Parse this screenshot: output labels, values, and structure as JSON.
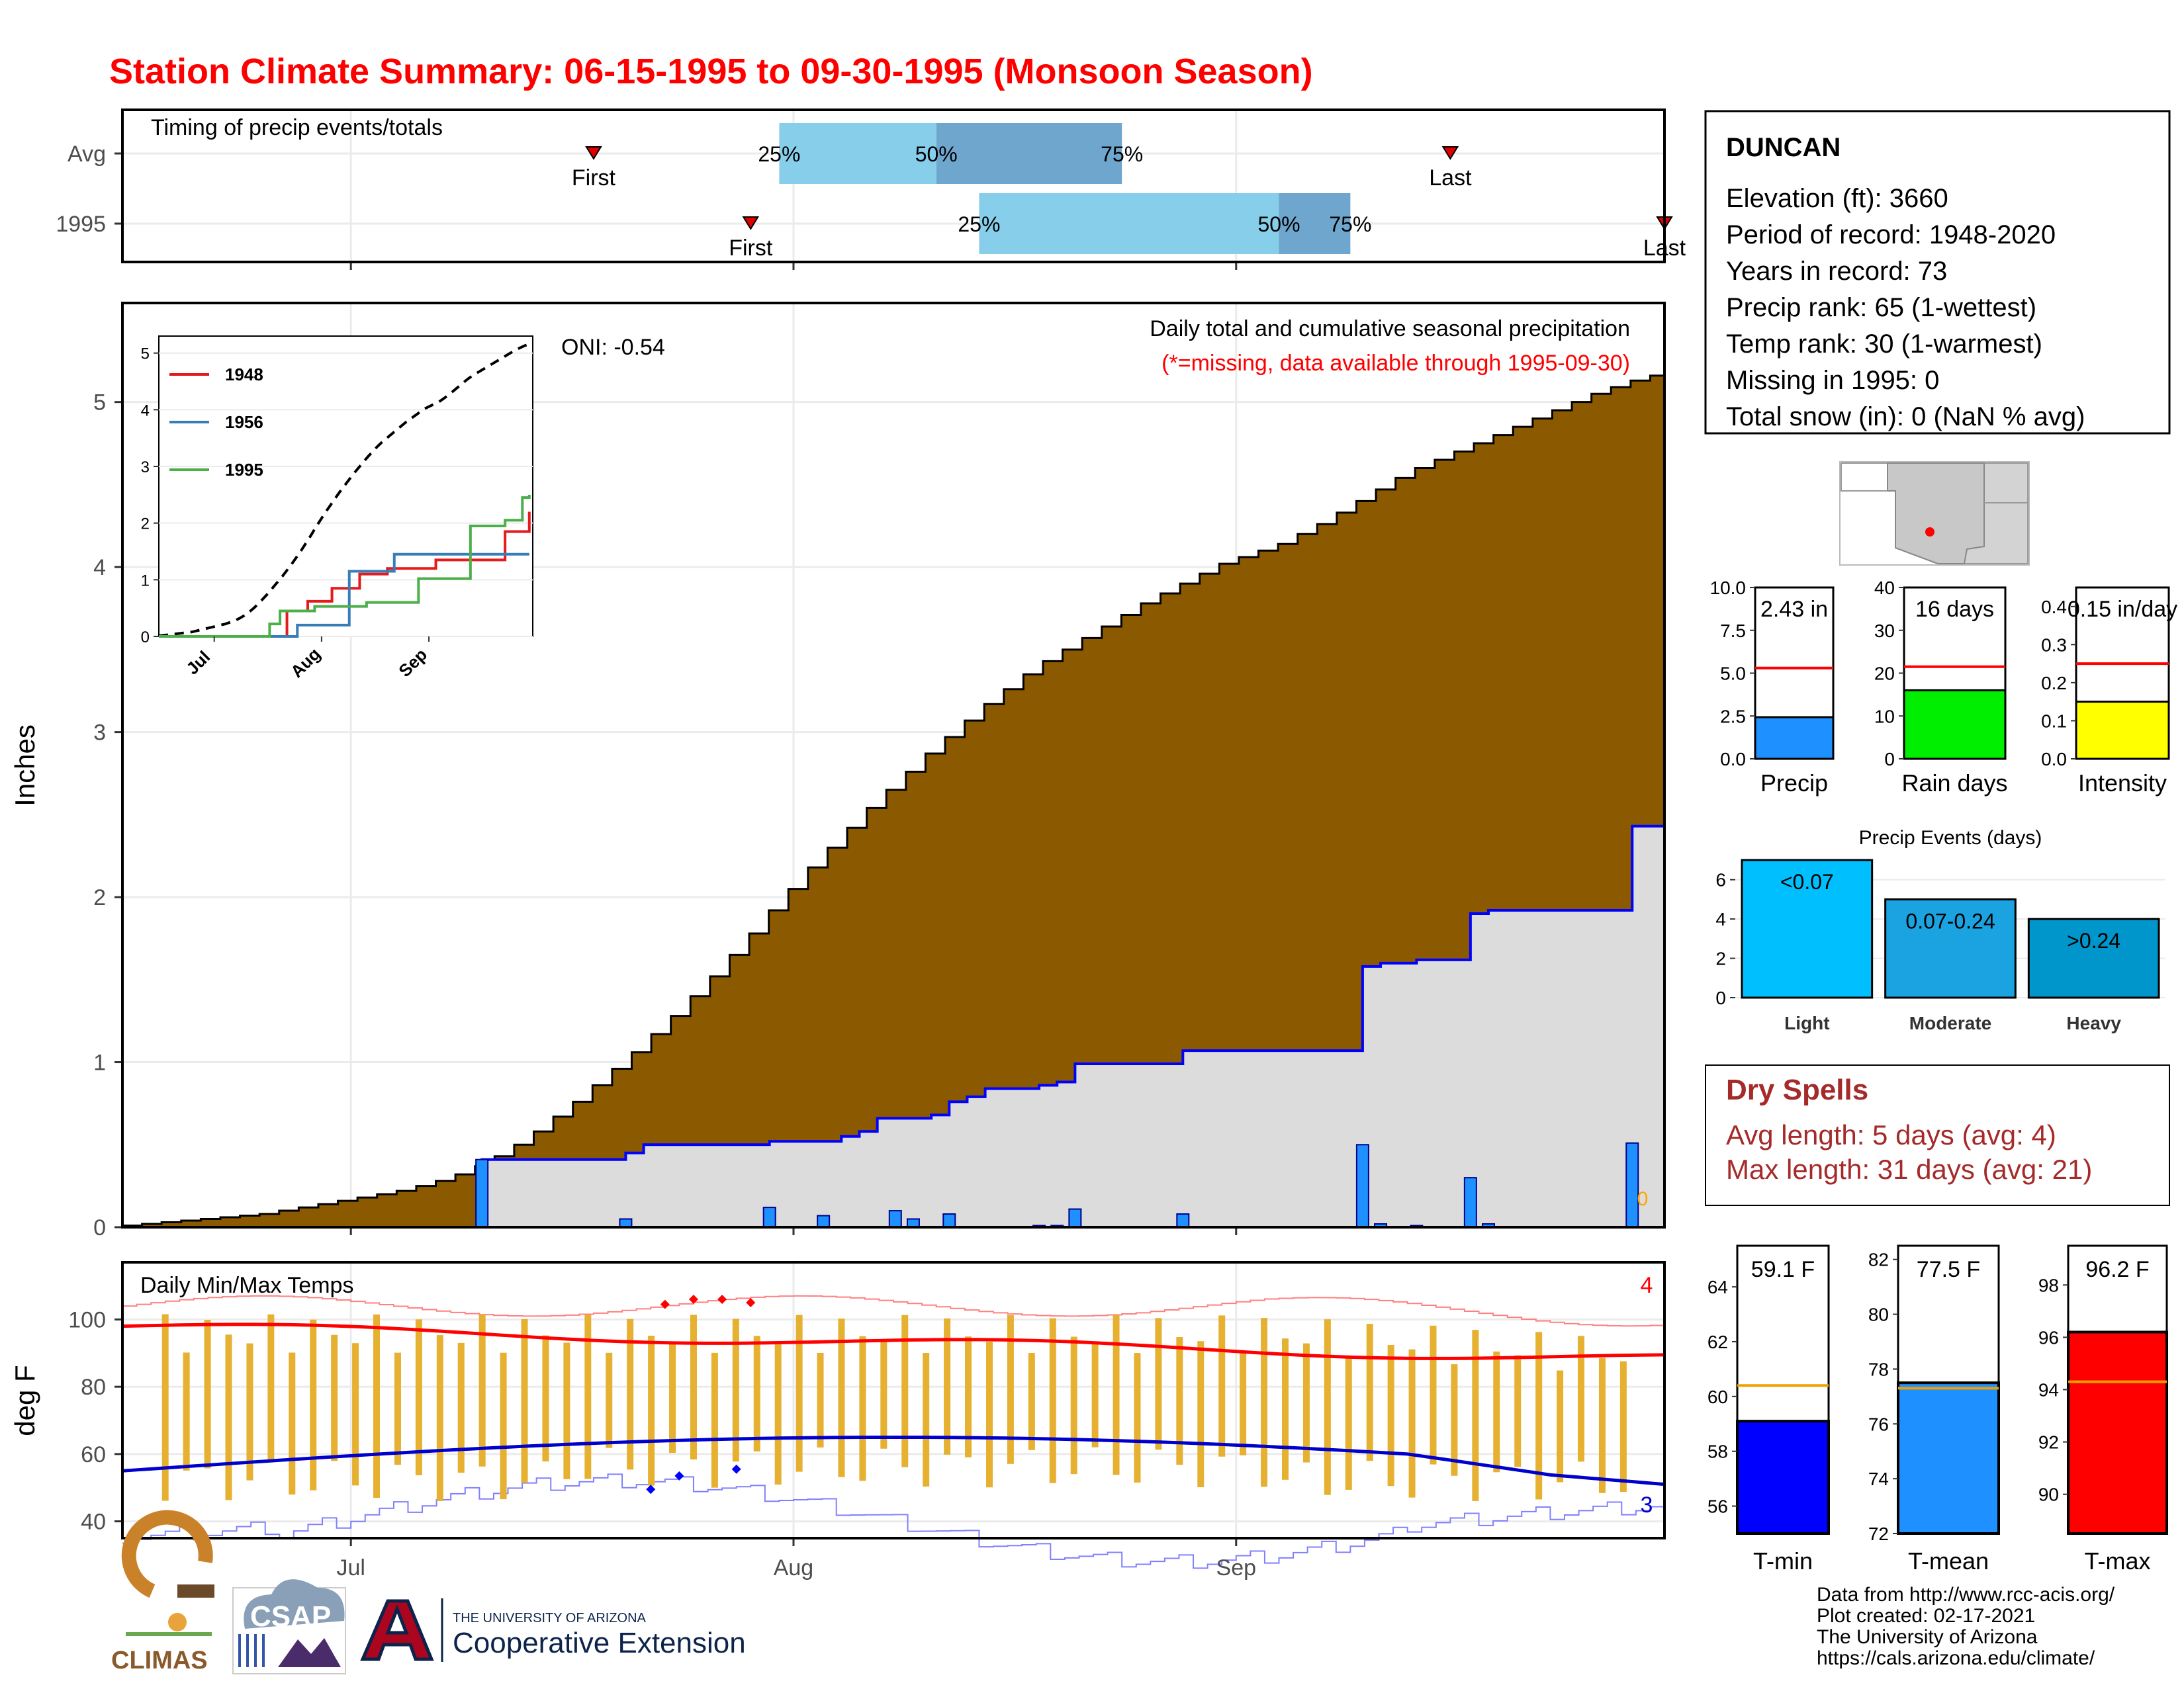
{
  "title": "Station Climate Summary: 06-15-1995 to 09-30-1995 (Monsoon Season)",
  "timing_panel": {
    "label": "Timing of precip events/totals",
    "rows": [
      {
        "name": "Avg",
        "first_day": 33,
        "last_day": 93,
        "p25": 46,
        "p50": 57,
        "p75": 70,
        "pct_labels": [
          "25%",
          "50%",
          "75%"
        ],
        "first_label": "First",
        "last_label": "Last"
      },
      {
        "name": "1995",
        "first_day": 44,
        "last_day": 108,
        "p25": 60,
        "p50": 81,
        "p75": 86,
        "pct_labels": [
          "25%",
          "50%",
          "75%"
        ],
        "first_label": "First",
        "last_label": "Last"
      }
    ]
  },
  "precip_panel": {
    "ylabel": "Inches",
    "yticks": [
      "0",
      "1",
      "2",
      "3",
      "4",
      "5"
    ],
    "oni": "ONI: -0.54",
    "subtitle": "Daily total and cumulative seasonal precipitation",
    "note": "(*=missing, data available through 1995-09-30)",
    "missing_count": "0",
    "inset": {
      "yticks": [
        "0",
        "1",
        "2",
        "3",
        "4",
        "5"
      ],
      "xticks": [
        "Jul",
        "Aug",
        "Sep"
      ],
      "legend": [
        "1948",
        "1956",
        "1995"
      ],
      "colors": [
        "#e41a1c",
        "#377eb8",
        "#4daf4a"
      ]
    }
  },
  "temp_panel": {
    "ylabel": "deg F",
    "label": "Daily Min/Max Temps",
    "yticks": [
      "40",
      "60",
      "80",
      "100"
    ],
    "xticks": [
      "Jul",
      "Aug",
      "Sep"
    ],
    "record_high_count": "4",
    "record_low_count": "3"
  },
  "station": {
    "name": "DUNCAN",
    "lines": [
      "Elevation (ft): 3660",
      "Period of record: 1948-2020",
      "Years in record: 73",
      "Precip rank: 65 (1-wettest)",
      "Temp rank: 30 (1-warmest)",
      "Missing in 1995: 0",
      "Total snow (in): 0 (NaN % avg)"
    ]
  },
  "mini_bars": [
    {
      "label": "Precip",
      "value_text": "2.43 in",
      "value": 2.43,
      "avg": 5.3,
      "max": 10,
      "ticks": [
        "0.0",
        "2.5",
        "5.0",
        "7.5",
        "10.0"
      ],
      "color": "#1e90ff"
    },
    {
      "label": "Rain days",
      "value_text": "16 days",
      "value": 16,
      "avg": 21.5,
      "max": 40,
      "ticks": [
        "0",
        "10",
        "20",
        "30",
        "40"
      ],
      "color": "#00ee00"
    },
    {
      "label": "Intensity",
      "value_text": "0.15 in/day",
      "value": 0.15,
      "avg": 0.25,
      "max": 0.45,
      "ticks": [
        "0.0",
        "0.1",
        "0.2",
        "0.3",
        "0.4"
      ],
      "color": "#ffff00"
    }
  ],
  "events": {
    "title": "Precip Events (days)",
    "yticks": [
      "0",
      "2",
      "4",
      "6"
    ],
    "bars": [
      {
        "label": "Light",
        "range": "<0.07",
        "value": 7,
        "color": "#00bfff"
      },
      {
        "label": "Moderate",
        "range": "0.07-0.24",
        "value": 5,
        "color": "#1aa3e0"
      },
      {
        "label": "Heavy",
        "range": ">0.24",
        "value": 4,
        "color": "#0096cc"
      }
    ]
  },
  "dry_spells": {
    "title": "Dry Spells",
    "avg_line": "Avg length: 5 days (avg: 4)",
    "max_line": "Max length: 31 days (avg: 21)"
  },
  "temp_bars": [
    {
      "label": "T-min",
      "value_text": "59.1 F",
      "value": 59.1,
      "avg": 60.4,
      "ymin": 55,
      "ymax": 65.5,
      "ticks": [
        "56",
        "58",
        "60",
        "62",
        "64"
      ],
      "color": "#0000ff"
    },
    {
      "label": "T-mean",
      "value_text": "77.5 F",
      "value": 77.5,
      "avg": 77.3,
      "ymin": 72,
      "ymax": 82.5,
      "ticks": [
        "72",
        "74",
        "76",
        "78",
        "80",
        "82"
      ],
      "color": "#1e90ff"
    },
    {
      "label": "T-max",
      "value_text": "96.2 F",
      "value": 96.2,
      "avg": 94.3,
      "ymin": 88.5,
      "ymax": 99.5,
      "ticks": [
        "90",
        "92",
        "94",
        "96",
        "98"
      ],
      "color": "#ff0000"
    }
  ],
  "footer": {
    "lines": [
      "Data from http://www.rcc-acis.org/",
      "Plot created: 02-17-2021",
      "The University of Arizona",
      "https://cals.arizona.edu/climate/"
    ],
    "logos": {
      "climas": "CLIMAS",
      "csap": "CSAP",
      "ua_small": "THE UNIVERSITY OF ARIZONA",
      "ua_big": "Cooperative Extension"
    }
  },
  "chart_data": {
    "type": "area",
    "x_start": "1995-06-15",
    "x_end": "1995-09-30",
    "xticks": [
      "Jul",
      "Aug",
      "Sep"
    ],
    "ylim": [
      0,
      5.6
    ],
    "series": [
      {
        "name": "avg cumulative precip (in)",
        "values": [
          0.01,
          0.02,
          0.03,
          0.04,
          0.05,
          0.06,
          0.07,
          0.08,
          0.1,
          0.12,
          0.14,
          0.16,
          0.18,
          0.2,
          0.22,
          0.25,
          0.28,
          0.32,
          0.37,
          0.43,
          0.5,
          0.58,
          0.67,
          0.76,
          0.86,
          0.96,
          1.06,
          1.17,
          1.28,
          1.4,
          1.52,
          1.65,
          1.78,
          1.92,
          2.05,
          2.18,
          2.3,
          2.42,
          2.54,
          2.65,
          2.76,
          2.87,
          2.97,
          3.07,
          3.17,
          3.26,
          3.35,
          3.43,
          3.5,
          3.57,
          3.64,
          3.71,
          3.78,
          3.84,
          3.9,
          3.96,
          4.02,
          4.06,
          4.1,
          4.14,
          4.2,
          4.26,
          4.33,
          4.4,
          4.47,
          4.54,
          4.6,
          4.65,
          4.7,
          4.75,
          4.8,
          4.85,
          4.9,
          4.95,
          5.0,
          5.05,
          5.09,
          5.13,
          5.16
        ]
      },
      {
        "name": "1995 cumulative precip (in)",
        "values": [
          0,
          0,
          0,
          0,
          0,
          0,
          0,
          0,
          0,
          0,
          0,
          0,
          0,
          0,
          0,
          0,
          0,
          0,
          0,
          0,
          0.41,
          0.41,
          0.41,
          0.41,
          0.41,
          0.41,
          0.41,
          0.41,
          0.45,
          0.5,
          0.5,
          0.5,
          0.5,
          0.5,
          0.5,
          0.5,
          0.52,
          0.52,
          0.52,
          0.52,
          0.55,
          0.58,
          0.66,
          0.66,
          0.66,
          0.68,
          0.76,
          0.79,
          0.84,
          0.84,
          0.84,
          0.86,
          0.88,
          0.99,
          0.99,
          0.99,
          0.99,
          0.99,
          0.99,
          1.07,
          1.07,
          1.07,
          1.07,
          1.07,
          1.07,
          1.07,
          1.07,
          1.07,
          1.07,
          1.58,
          1.6,
          1.6,
          1.62,
          1.62,
          1.62,
          1.9,
          1.92,
          1.92,
          1.92,
          1.92,
          1.92,
          1.92,
          1.92,
          1.92,
          2.43,
          2.43
        ]
      },
      {
        "name": "1995 daily precip (in)",
        "values": [
          0,
          0,
          0,
          0,
          0,
          0,
          0,
          0,
          0,
          0,
          0,
          0,
          0,
          0,
          0,
          0,
          0,
          0,
          0,
          0,
          0.41,
          0,
          0,
          0,
          0,
          0,
          0,
          0,
          0.05,
          0,
          0,
          0,
          0,
          0,
          0,
          0,
          0.12,
          0,
          0,
          0.07,
          0,
          0,
          0,
          0.1,
          0.05,
          0,
          0.08,
          0,
          0,
          0,
          0,
          0.01,
          0.01,
          0.11,
          0,
          0,
          0,
          0,
          0,
          0.08,
          0,
          0,
          0,
          0,
          0,
          0,
          0,
          0,
          0,
          0.5,
          0.02,
          0,
          0.01,
          0,
          0,
          0.3,
          0.02,
          0,
          0,
          0,
          0,
          0,
          0,
          0,
          0.51,
          0
        ]
      }
    ]
  }
}
